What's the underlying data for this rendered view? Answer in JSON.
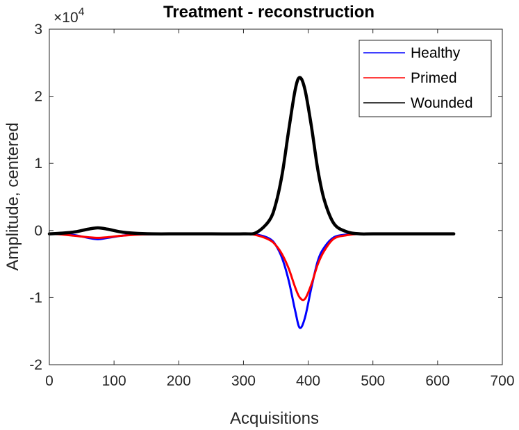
{
  "chart_data": {
    "type": "line",
    "title": "Treatment - reconstruction",
    "xlabel": "Acquisitions",
    "ylabel": "Amplitude, centered",
    "xlim": [
      0,
      700
    ],
    "ylim": [
      -2,
      3
    ],
    "y_scale_exponent": "×10⁴",
    "y_scale_exponent_base": "×10",
    "y_scale_exponent_power": "4",
    "x_ticks": [
      0,
      100,
      200,
      300,
      400,
      500,
      600,
      700
    ],
    "x_tick_labels": [
      "0",
      "100",
      "200",
      "300",
      "400",
      "500",
      "600",
      "700"
    ],
    "y_ticks": [
      -2,
      -1,
      0,
      1,
      2,
      3
    ],
    "y_tick_labels": [
      "-2",
      "-1",
      "0",
      "1",
      "2",
      "3"
    ],
    "grid": false,
    "legend_position": "top-right",
    "x": [
      0,
      20,
      40,
      60,
      75,
      90,
      110,
      130,
      160,
      200,
      250,
      300,
      320,
      340,
      350,
      360,
      370,
      380,
      387,
      395,
      405,
      415,
      425,
      440,
      460,
      480,
      500,
      550,
      600,
      625
    ],
    "series": [
      {
        "name": "Healthy",
        "color": "#0000ff",
        "values": [
          -0.05,
          -0.055,
          -0.07,
          -0.11,
          -0.13,
          -0.11,
          -0.08,
          -0.06,
          -0.055,
          -0.05,
          -0.05,
          -0.05,
          -0.06,
          -0.12,
          -0.22,
          -0.42,
          -0.75,
          -1.2,
          -1.45,
          -1.3,
          -0.85,
          -0.45,
          -0.25,
          -0.1,
          -0.06,
          -0.05,
          -0.05,
          -0.05,
          -0.05,
          -0.05
        ]
      },
      {
        "name": "Primed",
        "color": "#ff0000",
        "values": [
          -0.05,
          -0.06,
          -0.08,
          -0.1,
          -0.11,
          -0.1,
          -0.08,
          -0.065,
          -0.055,
          -0.05,
          -0.05,
          -0.05,
          -0.07,
          -0.14,
          -0.22,
          -0.36,
          -0.57,
          -0.85,
          -1.0,
          -1.02,
          -0.8,
          -0.5,
          -0.3,
          -0.12,
          -0.07,
          -0.05,
          -0.05,
          -0.05,
          -0.05,
          -0.05
        ]
      },
      {
        "name": "Wounded",
        "color": "#000000",
        "values": [
          -0.05,
          -0.04,
          -0.02,
          0.02,
          0.04,
          0.02,
          -0.02,
          -0.04,
          -0.05,
          -0.05,
          -0.05,
          -0.05,
          -0.03,
          0.15,
          0.4,
          0.85,
          1.5,
          2.1,
          2.28,
          2.1,
          1.55,
          0.9,
          0.45,
          0.1,
          -0.02,
          -0.05,
          -0.05,
          -0.05,
          -0.05,
          -0.05
        ]
      }
    ]
  }
}
